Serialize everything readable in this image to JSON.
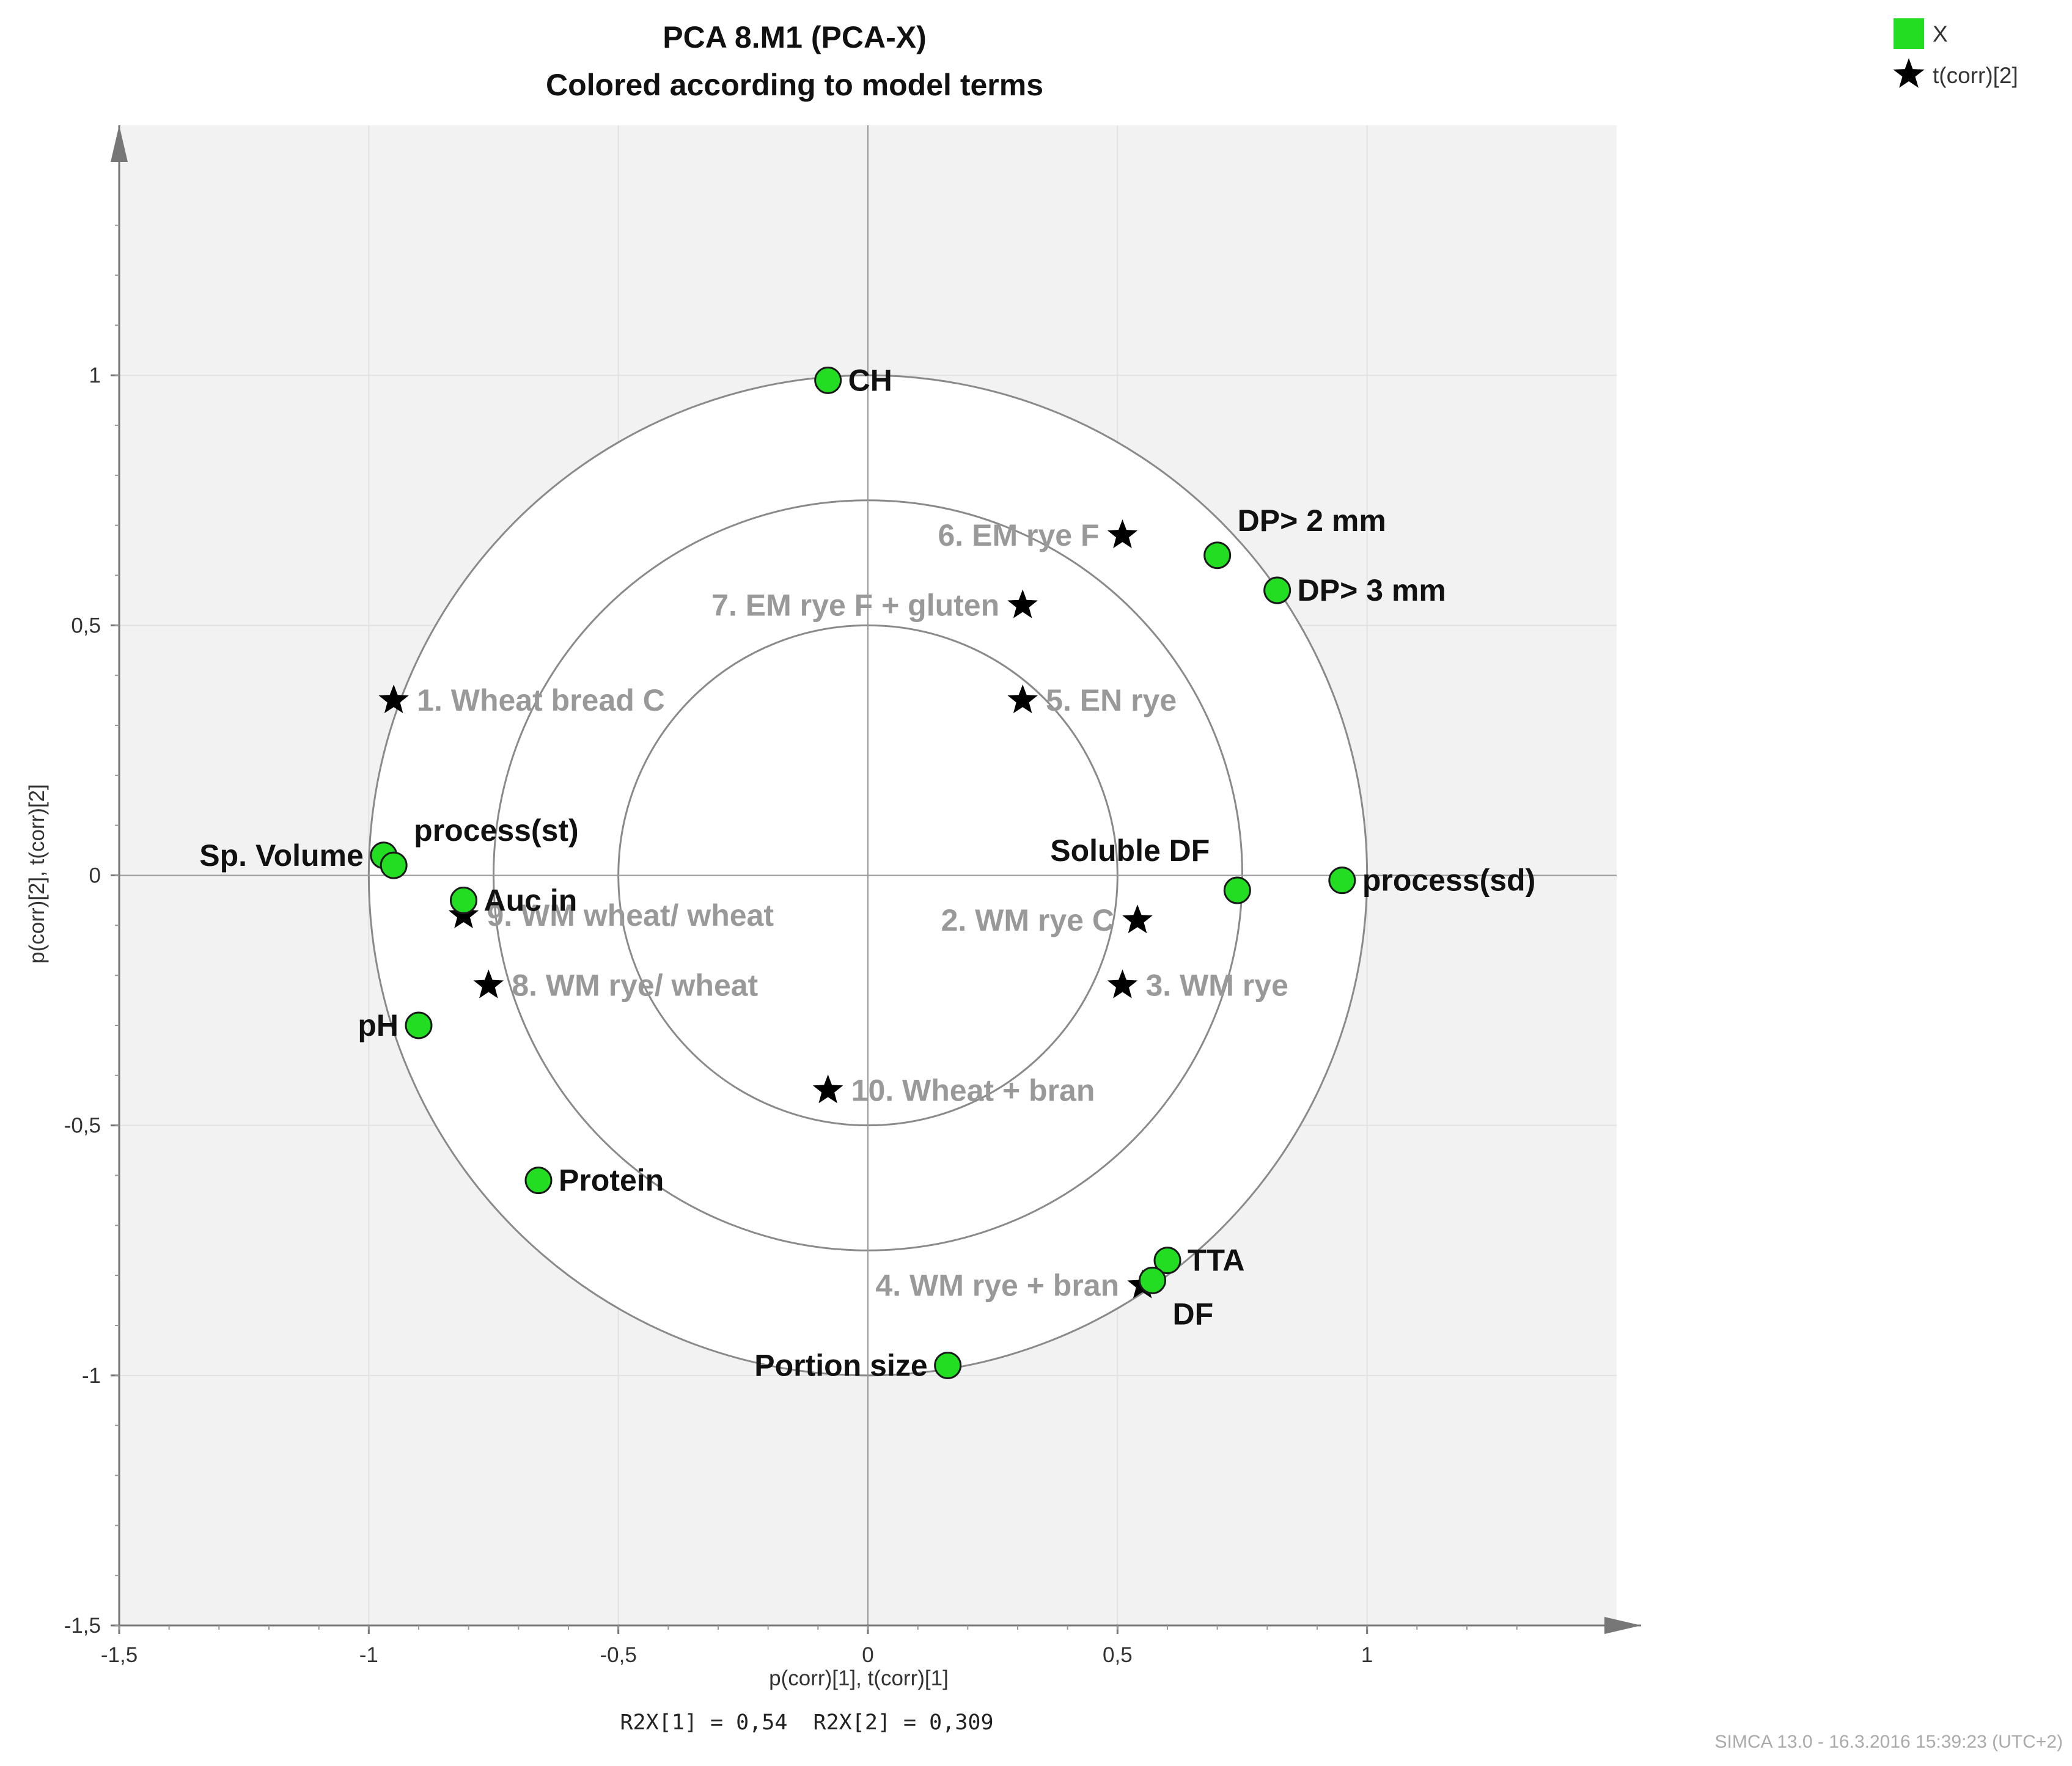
{
  "chart_data": {
    "type": "scatter",
    "title": "PCA 8.M1 (PCA-X)",
    "subtitle": "Colored according to model terms",
    "xlabel": "p(corr)[1], t(corr)[1]",
    "ylabel": "p(corr)[2], t(corr)[2]",
    "xlim": [
      -1.5,
      1.5
    ],
    "ylim": [
      -1.5,
      1.5
    ],
    "x_ticks": [
      {
        "value": -1.5,
        "label": "-1,5"
      },
      {
        "value": -1,
        "label": "-1"
      },
      {
        "value": -0.5,
        "label": "-0,5"
      },
      {
        "value": 0,
        "label": "0"
      },
      {
        "value": 0.5,
        "label": "0,5"
      },
      {
        "value": 1,
        "label": "1"
      }
    ],
    "y_ticks": [
      {
        "value": -1.5,
        "label": "-1,5"
      },
      {
        "value": -1,
        "label": "-1"
      },
      {
        "value": -0.5,
        "label": "-0,5"
      },
      {
        "value": 0,
        "label": "0"
      },
      {
        "value": 0.5,
        "label": "0,5"
      },
      {
        "value": 1,
        "label": "1"
      }
    ],
    "grid": true,
    "circles_radius": [
      1,
      0.75,
      0.5
    ],
    "legend": {
      "position": "top-right",
      "entries": [
        {
          "name": "X",
          "marker": "square",
          "color": "#22dd22"
        },
        {
          "name": "t(corr)[2]",
          "marker": "star",
          "color": "#000000"
        }
      ]
    },
    "series": [
      {
        "name": "X",
        "marker": "circle",
        "color": "#22dd22",
        "points": [
          {
            "label": "CH",
            "x": -0.08,
            "y": 0.99,
            "label_pos": "right"
          },
          {
            "label": "DP> 2 mm",
            "x": 0.7,
            "y": 0.64,
            "label_pos": "above-right"
          },
          {
            "label": "DP> 3 mm",
            "x": 0.82,
            "y": 0.57,
            "label_pos": "right"
          },
          {
            "label": "Sp. Volume",
            "x": -0.97,
            "y": 0.04,
            "label_pos": "left"
          },
          {
            "label": "process(st)",
            "x": -0.95,
            "y": 0.02,
            "label_pos": "above-right"
          },
          {
            "label": "Auc in",
            "x": -0.81,
            "y": -0.05,
            "label_pos": "right"
          },
          {
            "label": "pH",
            "x": -0.9,
            "y": -0.3,
            "label_pos": "left"
          },
          {
            "label": "Protein",
            "x": -0.66,
            "y": -0.61,
            "label_pos": "right"
          },
          {
            "label": "Soluble DF",
            "x": 0.74,
            "y": -0.03,
            "label_pos": "above-left"
          },
          {
            "label": "process(sd)",
            "x": 0.95,
            "y": -0.01,
            "label_pos": "right"
          },
          {
            "label": "TTA",
            "x": 0.6,
            "y": -0.77,
            "label_pos": "right"
          },
          {
            "label": "DF",
            "x": 0.57,
            "y": -0.81,
            "label_pos": "below-right"
          },
          {
            "label": "Portion size",
            "x": 0.16,
            "y": -0.98,
            "label_pos": "left"
          }
        ]
      },
      {
        "name": "t(corr)[2]",
        "marker": "star",
        "color": "#000000",
        "points": [
          {
            "label": "6. EM rye F",
            "x": 0.51,
            "y": 0.68,
            "label_pos": "left"
          },
          {
            "label": "7. EM rye F + gluten",
            "x": 0.31,
            "y": 0.54,
            "label_pos": "left"
          },
          {
            "label": "1. Wheat bread C",
            "x": -0.95,
            "y": 0.35,
            "label_pos": "right"
          },
          {
            "label": "5. EN rye",
            "x": 0.31,
            "y": 0.35,
            "label_pos": "right"
          },
          {
            "label": "9. WM wheat/ wheat",
            "x": -0.81,
            "y": -0.08,
            "label_pos": "right"
          },
          {
            "label": "2. WM rye C",
            "x": 0.54,
            "y": -0.09,
            "label_pos": "left"
          },
          {
            "label": "8. WM rye/ wheat",
            "x": -0.76,
            "y": -0.22,
            "label_pos": "right"
          },
          {
            "label": "3. WM  rye",
            "x": 0.51,
            "y": -0.22,
            "label_pos": "right"
          },
          {
            "label": "10. Wheat + bran",
            "x": -0.08,
            "y": -0.43,
            "label_pos": "right"
          },
          {
            "label": "4. WM  rye  + bran",
            "x": 0.55,
            "y": -0.82,
            "label_pos": "left"
          }
        ]
      }
    ],
    "r2x_text": "R2X[1] = 0,54  R2X[2] = 0,309",
    "footer": "SIMCA 13.0 - 16.3.2016 15:39:23 (UTC+2)"
  }
}
